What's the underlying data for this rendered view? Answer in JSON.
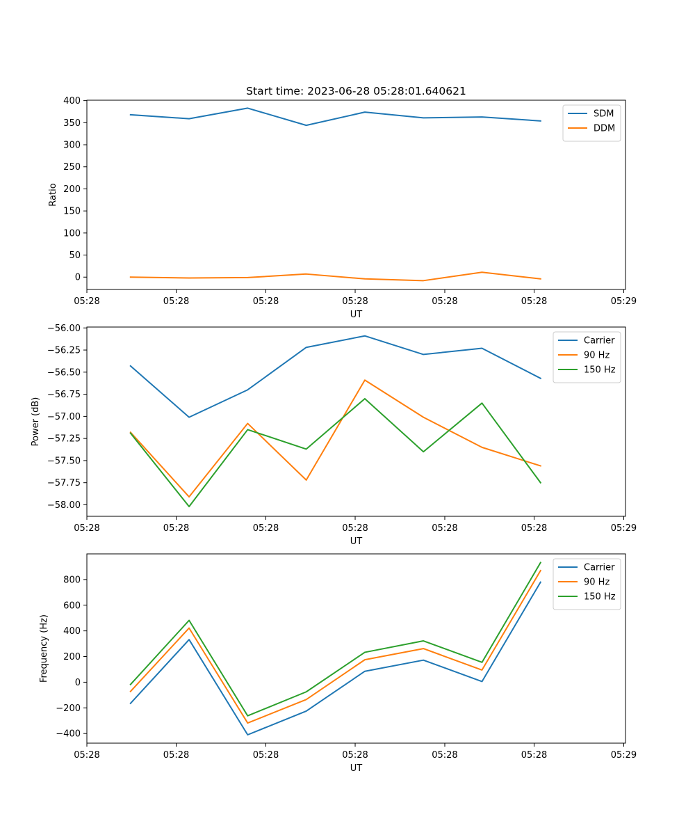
{
  "figure_title": "Start time: 2023-06-28 05:28:01.640621",
  "colors": {
    "blue": "#1f77b4",
    "orange": "#ff7f0e",
    "green": "#2ca02c"
  },
  "chart_data": [
    {
      "type": "line",
      "title": "Start time: 2023-06-28 05:28:01.640621",
      "xlabel": "UT",
      "ylabel": "Ratio",
      "x": [
        0,
        1,
        2,
        3,
        4,
        5,
        6,
        7
      ],
      "x_range": [
        -0.745,
        8.45
      ],
      "x_ticks": [
        -0.745,
        0.78,
        2.31,
        3.835,
        5.365,
        6.89,
        8.42
      ],
      "x_tick_labels": [
        "05:28",
        "05:28",
        "05:28",
        "05:28",
        "05:28",
        "05:28",
        "05:29"
      ],
      "ylim": [
        -28,
        401
      ],
      "y_ticks": [
        0,
        50,
        100,
        150,
        200,
        250,
        300,
        350,
        400
      ],
      "y_tick_labels": [
        "0",
        "50",
        "100",
        "150",
        "200",
        "250",
        "300",
        "350",
        "400"
      ],
      "grid": false,
      "legend_position": "top-right",
      "series": [
        {
          "name": "SDM",
          "color": "#1f77b4",
          "values": [
            368,
            359,
            383,
            344,
            374,
            361,
            363,
            354
          ]
        },
        {
          "name": "DDM",
          "color": "#ff7f0e",
          "values": [
            0,
            -2,
            -1,
            7,
            -4,
            -8,
            11,
            -4
          ]
        }
      ]
    },
    {
      "type": "line",
      "xlabel": "UT",
      "ylabel": "Power (dB)",
      "x": [
        0,
        1,
        2,
        3,
        4,
        5,
        6,
        7
      ],
      "x_range": [
        -0.745,
        8.45
      ],
      "x_ticks": [
        -0.745,
        0.78,
        2.31,
        3.835,
        5.365,
        6.89,
        8.42
      ],
      "x_tick_labels": [
        "05:28",
        "05:28",
        "05:28",
        "05:28",
        "05:28",
        "05:28",
        "05:29"
      ],
      "ylim": [
        -58.13,
        -55.99
      ],
      "y_ticks": [
        -56.0,
        -56.25,
        -56.5,
        -56.75,
        -57.0,
        -57.25,
        -57.5,
        -57.75,
        -58.0
      ],
      "y_tick_labels": [
        "−56.00",
        "−56.25",
        "−56.50",
        "−56.75",
        "−57.00",
        "−57.25",
        "−57.50",
        "−57.75",
        "−58.00"
      ],
      "grid": false,
      "legend_position": "top-right",
      "series": [
        {
          "name": "Carrier",
          "color": "#1f77b4",
          "values": [
            -56.43,
            -57.01,
            -56.7,
            -56.22,
            -56.09,
            -56.3,
            -56.23,
            -56.57
          ]
        },
        {
          "name": "90 Hz",
          "color": "#ff7f0e",
          "values": [
            -57.18,
            -57.91,
            -57.08,
            -57.72,
            -56.59,
            -57.01,
            -57.35,
            -57.56
          ]
        },
        {
          "name": "150 Hz",
          "color": "#2ca02c",
          "values": [
            -57.19,
            -58.02,
            -57.15,
            -57.37,
            -56.8,
            -57.4,
            -56.85,
            -57.75
          ]
        }
      ]
    },
    {
      "type": "line",
      "xlabel": "UT",
      "ylabel": "Frequency (Hz)",
      "x": [
        0,
        1,
        2,
        3,
        4,
        5,
        6,
        7
      ],
      "x_range": [
        -0.745,
        8.45
      ],
      "x_ticks": [
        -0.745,
        0.78,
        2.31,
        3.835,
        5.365,
        6.89,
        8.42
      ],
      "x_tick_labels": [
        "05:28",
        "05:28",
        "05:28",
        "05:28",
        "05:28",
        "05:28",
        "05:29"
      ],
      "ylim": [
        -475,
        1000
      ],
      "y_ticks": [
        -400,
        -200,
        0,
        200,
        400,
        600,
        800
      ],
      "y_tick_labels": [
        "−400",
        "−200",
        "0",
        "200",
        "400",
        "600",
        "800"
      ],
      "grid": false,
      "legend_position": "top-right",
      "series": [
        {
          "name": "Carrier",
          "color": "#1f77b4",
          "values": [
            -165,
            332,
            -410,
            -225,
            85,
            172,
            5,
            780
          ]
        },
        {
          "name": "90 Hz",
          "color": "#ff7f0e",
          "values": [
            -72,
            422,
            -318,
            -135,
            175,
            262,
            95,
            870
          ]
        },
        {
          "name": "150 Hz",
          "color": "#2ca02c",
          "values": [
            -18,
            482,
            -262,
            -75,
            233,
            322,
            155,
            932
          ]
        }
      ]
    }
  ]
}
